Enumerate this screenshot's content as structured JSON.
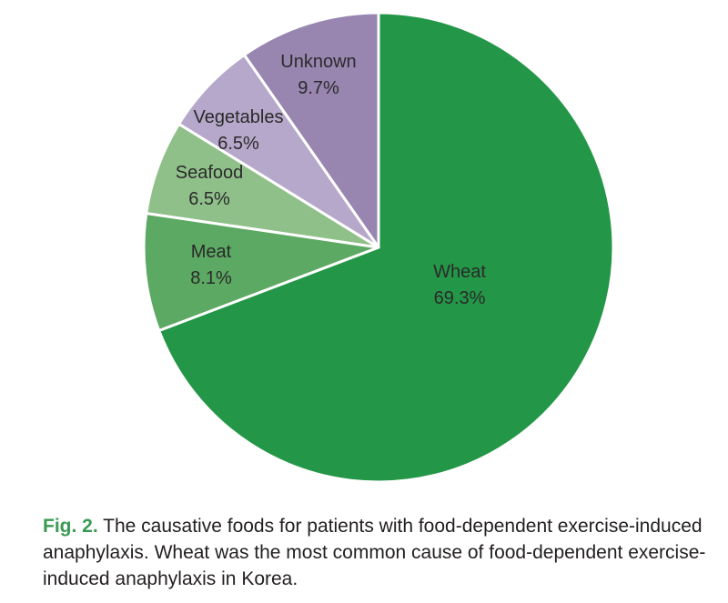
{
  "chart_data": {
    "type": "pie",
    "categories": [
      "Wheat",
      "Meat",
      "Seafood",
      "Vegetables",
      "Unknown"
    ],
    "values": [
      69.3,
      8.1,
      6.5,
      6.5,
      9.7
    ],
    "value_labels": [
      "69.3%",
      "8.1%",
      "6.5%",
      "6.5%",
      "9.7%"
    ],
    "colors": [
      "#239747",
      "#5ca963",
      "#8fc08a",
      "#b6a8ca",
      "#9886b1"
    ],
    "start_angle": "12 o'clock",
    "direction": "clockwise",
    "legend": "none (labels inside slices)"
  },
  "caption": {
    "label": "Fig. 2.",
    "text": "The causative foods for patients with food-dependent exercise-induced anaphylaxis. Wheat was the most common cause of food-dependent exercise-induced anaphylaxis in Korea."
  }
}
